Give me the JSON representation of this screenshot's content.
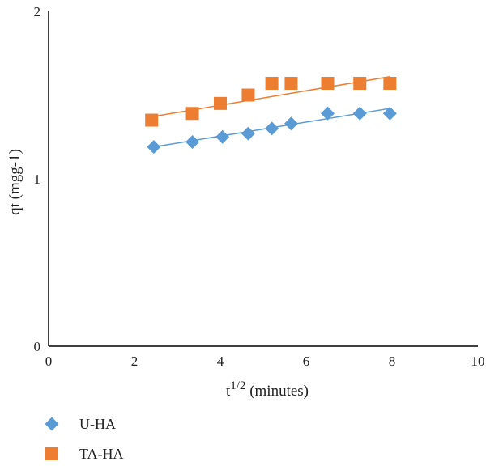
{
  "chart_data": {
    "type": "scatter",
    "title": "",
    "xlabel_base": "t",
    "xlabel_sup": "1/2",
    "xlabel_rest": " (minutes)",
    "ylabel": "qt (mgg-1)",
    "xlim": [
      0,
      10
    ],
    "ylim": [
      0,
      2
    ],
    "xticks": [
      0,
      2,
      4,
      6,
      8,
      10
    ],
    "yticks": [
      0,
      1,
      2
    ],
    "grid": false,
    "legend_position": "bottom-left",
    "series": [
      {
        "name": "U-HA",
        "marker": "diamond",
        "color": "#5B9BD5",
        "x": [
          2.45,
          3.35,
          4.05,
          4.65,
          5.2,
          5.65,
          6.5,
          7.25,
          7.95
        ],
        "y": [
          1.19,
          1.22,
          1.25,
          1.27,
          1.3,
          1.33,
          1.39,
          1.39,
          1.39
        ],
        "trendline": {
          "x": [
            2.45,
            7.95
          ],
          "y": [
            1.19,
            1.42
          ]
        }
      },
      {
        "name": "TA-HA",
        "marker": "square",
        "color": "#ED7D31",
        "x": [
          2.4,
          3.35,
          4.0,
          4.65,
          5.2,
          5.65,
          6.5,
          7.25,
          7.95
        ],
        "y": [
          1.35,
          1.39,
          1.45,
          1.5,
          1.57,
          1.57,
          1.57,
          1.57,
          1.57
        ],
        "trendline": {
          "x": [
            2.4,
            7.95
          ],
          "y": [
            1.37,
            1.61
          ]
        }
      }
    ]
  }
}
